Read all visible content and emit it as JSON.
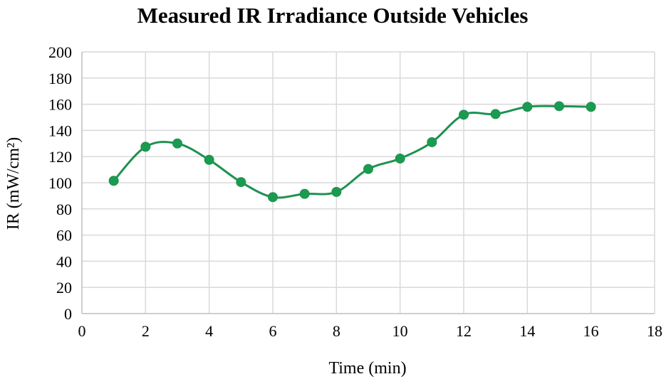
{
  "chart_data": {
    "type": "line",
    "title": "Measured IR Irradiance Outside Vehicles",
    "xlabel": "Time (min)",
    "ylabel": "IR (mW/cm²)",
    "xlim": [
      0,
      18
    ],
    "ylim": [
      0,
      200
    ],
    "xticks": [
      0,
      2,
      4,
      6,
      8,
      10,
      12,
      14,
      16,
      18
    ],
    "yticks": [
      0,
      20,
      40,
      60,
      80,
      100,
      120,
      140,
      160,
      180,
      200
    ],
    "grid": true,
    "smooth": true,
    "series": [
      {
        "color": "#1e9150",
        "marker_color": "#1a9b50",
        "x": [
          1,
          2,
          3,
          4,
          5,
          6,
          7,
          8,
          9,
          10,
          11,
          12,
          13,
          14,
          15,
          16
        ],
        "y": [
          101.5,
          127.5,
          130,
          117.5,
          100.5,
          89,
          91.5,
          93,
          110.5,
          118.5,
          131,
          152,
          152.5,
          158,
          158.5,
          158
        ]
      }
    ]
  }
}
